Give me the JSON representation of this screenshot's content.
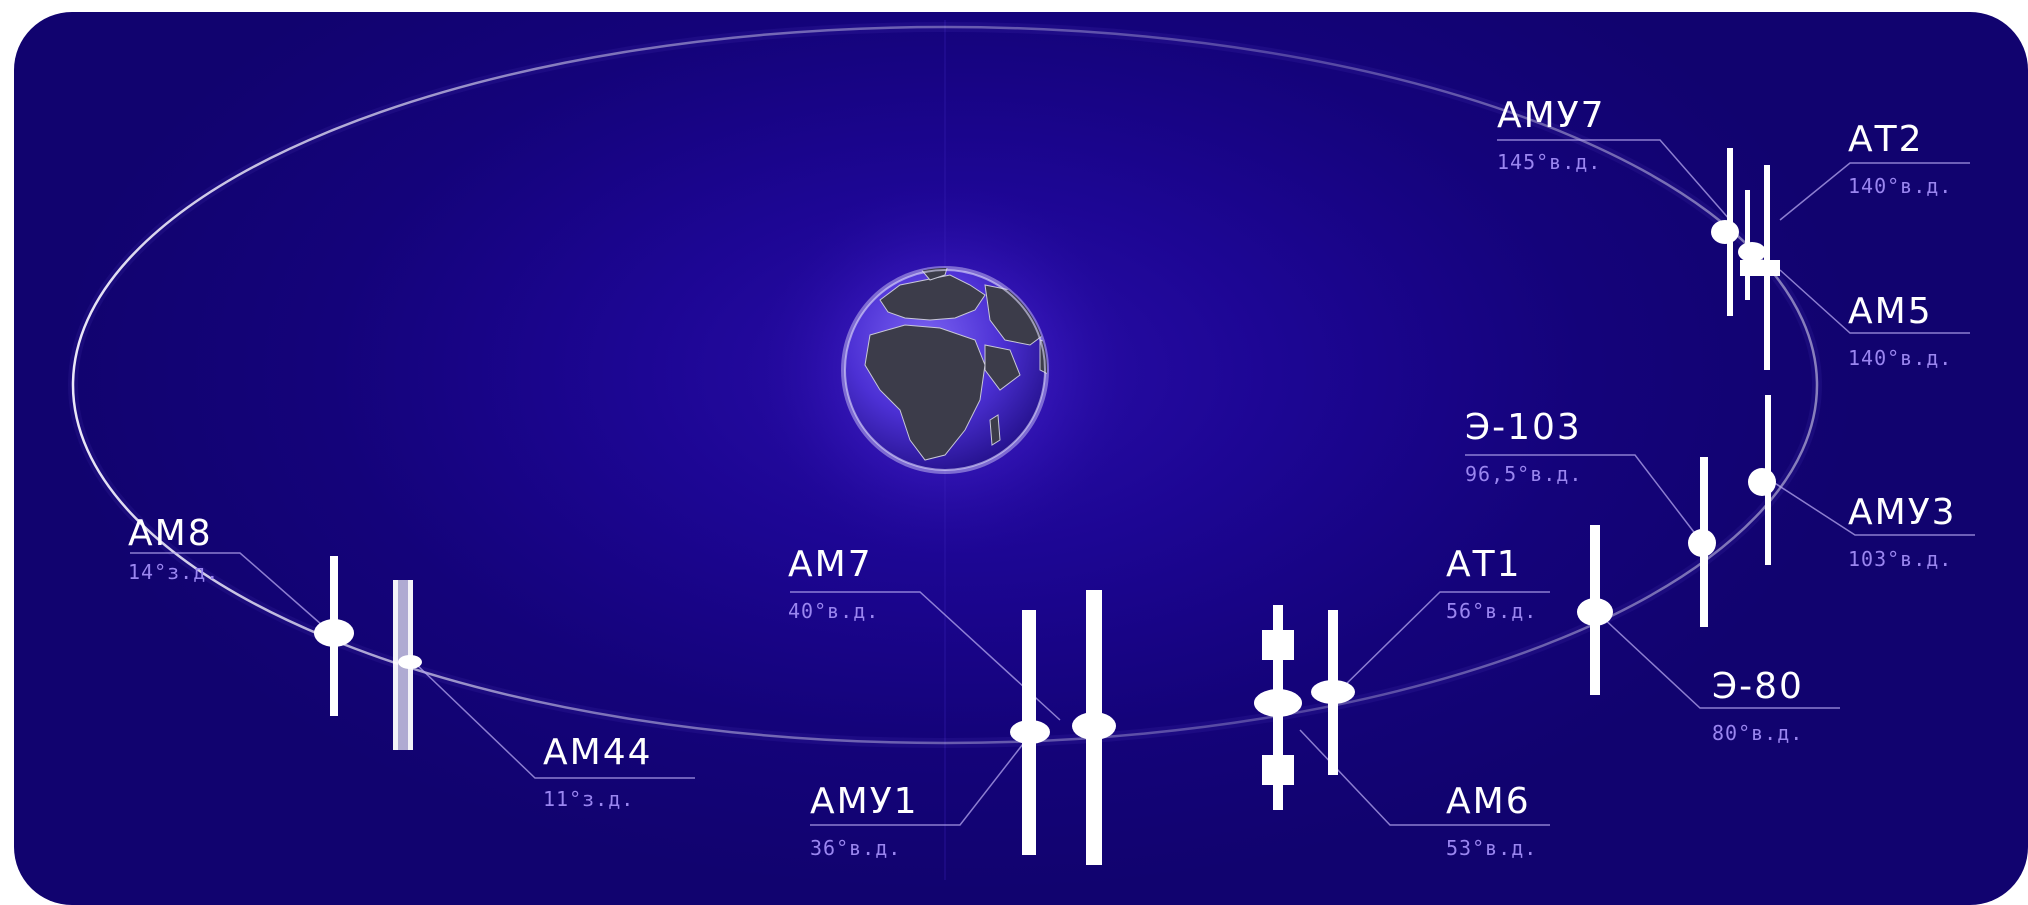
{
  "satellites": [
    {
      "id": "amu7",
      "name": "АМУ7",
      "position": "145°в.д."
    },
    {
      "id": "at2",
      "name": "АТ2",
      "position": "140°в.д."
    },
    {
      "id": "am5",
      "name": "АМ5",
      "position": "140°в.д."
    },
    {
      "id": "e103",
      "name": "Э-103",
      "position": "96,5°в.д."
    },
    {
      "id": "amu3",
      "name": "АМУ3",
      "position": "103°в.д."
    },
    {
      "id": "am8",
      "name": "АМ8",
      "position": "14°з.д."
    },
    {
      "id": "am7",
      "name": "АМ7",
      "position": "40°в.д."
    },
    {
      "id": "at1",
      "name": "АТ1",
      "position": "56°в.д."
    },
    {
      "id": "e80",
      "name": "Э-80",
      "position": "80°в.д."
    },
    {
      "id": "am44",
      "name": "АМ44",
      "position": "11°з.д."
    },
    {
      "id": "amu1",
      "name": "АМУ1",
      "position": "36°в.д."
    },
    {
      "id": "am6",
      "name": "АМ6",
      "position": "53°в.д."
    }
  ],
  "colors": {
    "background": "#14037a",
    "orbit": "#ffffff",
    "position_text": "#9a86f0",
    "earth_ocean": "#5a3ee0",
    "earth_land": "#3a3a48"
  }
}
